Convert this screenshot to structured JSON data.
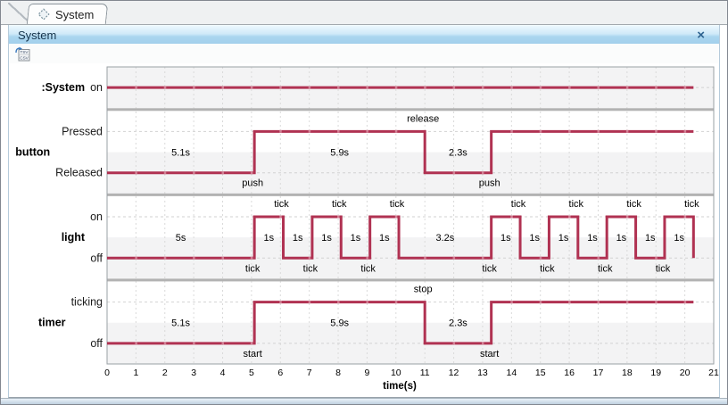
{
  "tab_bar": {
    "tabs": [
      {
        "label": "System",
        "icon": "timing-diagram-icon",
        "active": true
      }
    ]
  },
  "panel": {
    "title": "System",
    "close_icon_glyph": "×"
  },
  "toolbar": {
    "buttons": [
      {
        "name": "export-tsv-csv",
        "icon": "export-table-icon",
        "icon_lines": [
          "TSV",
          "CSV"
        ]
      }
    ]
  },
  "chart_data": {
    "type": "timing-diagram",
    "time_axis": {
      "min": 0,
      "max": 21,
      "step": 1,
      "label": "time(s)"
    },
    "colors": {
      "line": "#b03252",
      "line_tick": "#d27e93",
      "band": "#f3f3f4",
      "separator": "#b2b2b2",
      "grid": "#dadada",
      "level_dash": "#d2d2d2",
      "frame": "#9aa0a5",
      "text": "#000000"
    },
    "lifelines": [
      {
        "name": ":System",
        "states": [
          "on"
        ],
        "timeline": [
          {
            "state": "on",
            "from": 0,
            "to": 20.3
          }
        ],
        "events": []
      },
      {
        "name": "button",
        "states": [
          "Pressed",
          "Released"
        ],
        "timeline": [
          {
            "state": "Released",
            "from": 0,
            "to": 5.1,
            "duration_label": "5.1s"
          },
          {
            "state": "Pressed",
            "from": 5.1,
            "to": 11,
            "duration_label": "5.9s"
          },
          {
            "state": "Released",
            "from": 11,
            "to": 13.3,
            "duration_label": "2.3s"
          },
          {
            "state": "Pressed",
            "from": 13.3,
            "to": 20.3
          }
        ],
        "events": [
          {
            "label": "push",
            "t": 5.1,
            "position": "below"
          },
          {
            "label": "release",
            "t": 11,
            "position": "above"
          },
          {
            "label": "push",
            "t": 13.3,
            "position": "below"
          }
        ]
      },
      {
        "name": "light",
        "states": [
          "on",
          "off"
        ],
        "timeline": [
          {
            "state": "off",
            "from": 0,
            "to": 5.1,
            "duration_label": "5s"
          },
          {
            "state": "on",
            "from": 5.1,
            "to": 6.1,
            "duration_label": "1s"
          },
          {
            "state": "off",
            "from": 6.1,
            "to": 7.1,
            "duration_label": "1s"
          },
          {
            "state": "on",
            "from": 7.1,
            "to": 8.1,
            "duration_label": "1s"
          },
          {
            "state": "off",
            "from": 8.1,
            "to": 9.1,
            "duration_label": "1s"
          },
          {
            "state": "on",
            "from": 9.1,
            "to": 10.1,
            "duration_label": "1s"
          },
          {
            "state": "off",
            "from": 10.1,
            "to": 13.3,
            "duration_label": "3.2s"
          },
          {
            "state": "on",
            "from": 13.3,
            "to": 14.3,
            "duration_label": "1s"
          },
          {
            "state": "off",
            "from": 14.3,
            "to": 15.3,
            "duration_label": "1s"
          },
          {
            "state": "on",
            "from": 15.3,
            "to": 16.3,
            "duration_label": "1s"
          },
          {
            "state": "off",
            "from": 16.3,
            "to": 17.3,
            "duration_label": "1s"
          },
          {
            "state": "on",
            "from": 17.3,
            "to": 18.3,
            "duration_label": "1s"
          },
          {
            "state": "off",
            "from": 18.3,
            "to": 19.3,
            "duration_label": "1s"
          },
          {
            "state": "on",
            "from": 19.3,
            "to": 20.3,
            "duration_label": "1s"
          },
          {
            "state": "off",
            "from": 20.3,
            "to": 20.3
          }
        ],
        "events": [
          {
            "label": "tick",
            "t": 5.1,
            "position": "below"
          },
          {
            "label": "tick",
            "t": 6.1,
            "position": "above"
          },
          {
            "label": "tick",
            "t": 7.1,
            "position": "below"
          },
          {
            "label": "tick",
            "t": 8.1,
            "position": "above"
          },
          {
            "label": "tick",
            "t": 9.1,
            "position": "below"
          },
          {
            "label": "tick",
            "t": 10.1,
            "position": "above"
          },
          {
            "label": "tick",
            "t": 13.3,
            "position": "below"
          },
          {
            "label": "tick",
            "t": 14.3,
            "position": "above"
          },
          {
            "label": "tick",
            "t": 15.3,
            "position": "below"
          },
          {
            "label": "tick",
            "t": 16.3,
            "position": "above"
          },
          {
            "label": "tick",
            "t": 17.3,
            "position": "below"
          },
          {
            "label": "tick",
            "t": 18.3,
            "position": "above"
          },
          {
            "label": "tick",
            "t": 19.3,
            "position": "below"
          },
          {
            "label": "tick",
            "t": 20.3,
            "position": "above"
          }
        ]
      },
      {
        "name": "timer",
        "states": [
          "ticking",
          "off"
        ],
        "timeline": [
          {
            "state": "off",
            "from": 0,
            "to": 5.1,
            "duration_label": "5.1s"
          },
          {
            "state": "ticking",
            "from": 5.1,
            "to": 11,
            "duration_label": "5.9s"
          },
          {
            "state": "off",
            "from": 11,
            "to": 13.3,
            "duration_label": "2.3s"
          },
          {
            "state": "ticking",
            "from": 13.3,
            "to": 20.3
          }
        ],
        "events": [
          {
            "label": "start",
            "t": 5.1,
            "position": "below"
          },
          {
            "label": "stop",
            "t": 11,
            "position": "above"
          },
          {
            "label": "start",
            "t": 13.3,
            "position": "below"
          }
        ]
      }
    ]
  }
}
